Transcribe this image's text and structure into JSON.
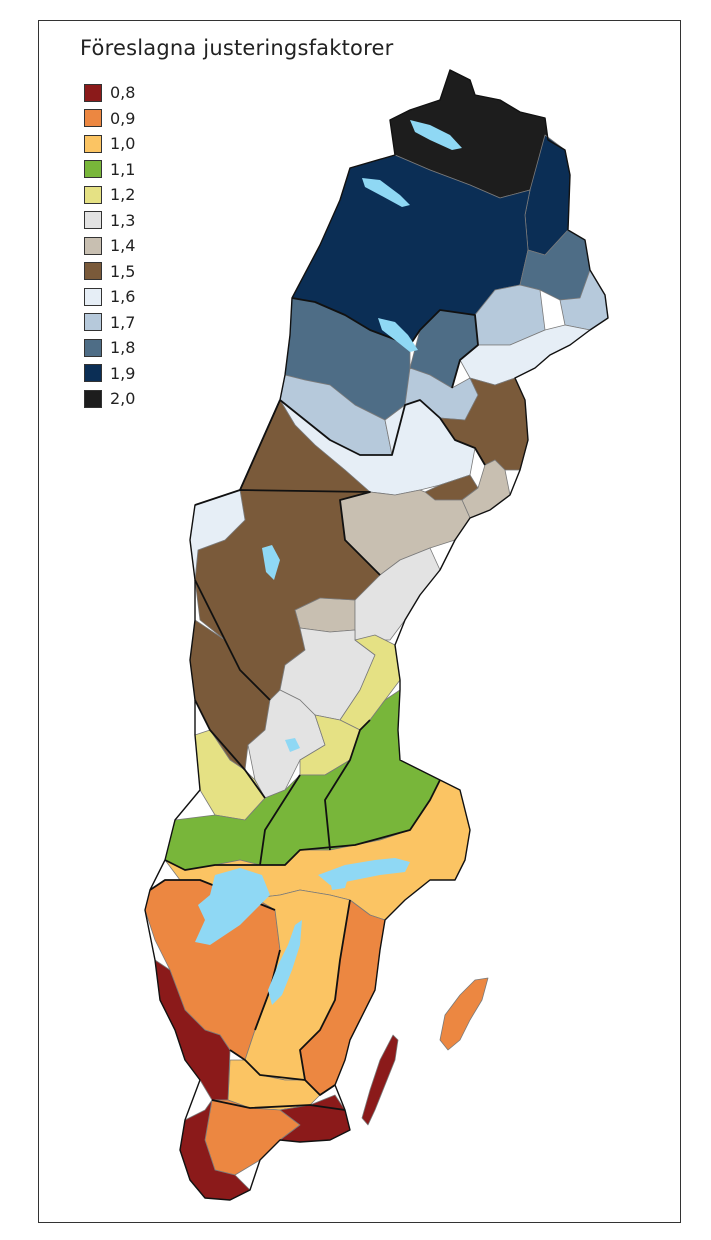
{
  "map": {
    "title": "Föreslagna justeringsfaktorer",
    "legend": [
      {
        "label": "0,8",
        "color": "#8b1a1a"
      },
      {
        "label": "0,9",
        "color": "#ec8741"
      },
      {
        "label": "1,0",
        "color": "#fbc463"
      },
      {
        "label": "1,1",
        "color": "#78b63a"
      },
      {
        "label": "1,2",
        "color": "#e5e184"
      },
      {
        "label": "1,3",
        "color": "#e3e3e3"
      },
      {
        "label": "1,4",
        "color": "#c8bfb1"
      },
      {
        "label": "1,5",
        "color": "#7a5a3a"
      },
      {
        "label": "1,6",
        "color": "#e6eef6"
      },
      {
        "label": "1,7",
        "color": "#b6c9db"
      },
      {
        "label": "1,8",
        "color": "#4e6d86"
      },
      {
        "label": "1,9",
        "color": "#0b2e55"
      },
      {
        "label": "2,0",
        "color": "#1d1d1d"
      }
    ],
    "lake_color": "#8fd8f4"
  }
}
